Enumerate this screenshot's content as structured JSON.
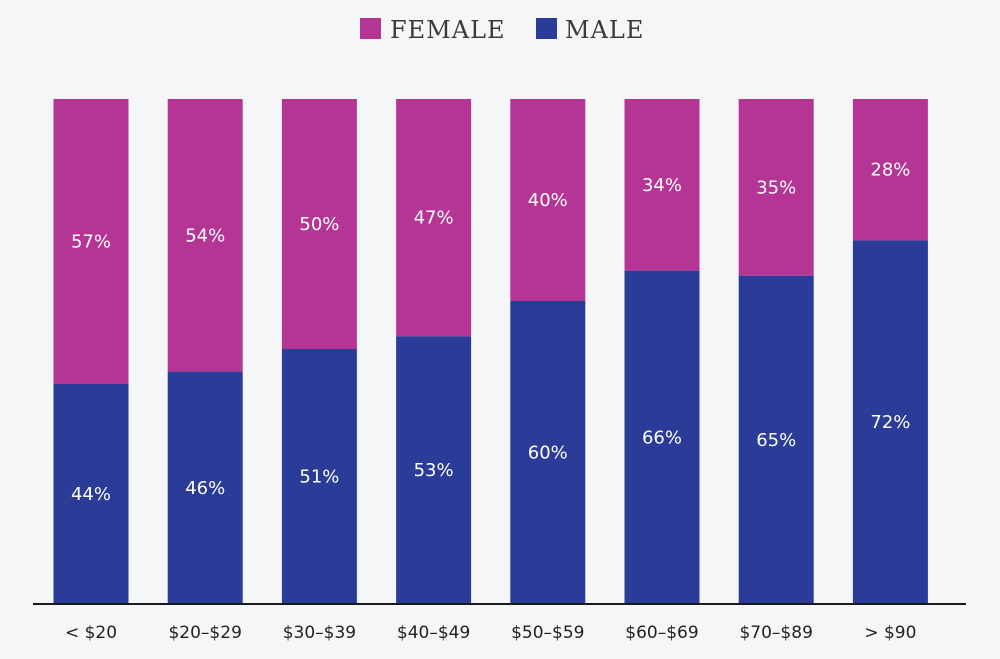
{
  "chart_data": {
    "type": "bar",
    "stacked": true,
    "normalized": true,
    "categories": [
      "< $20",
      "$20–$29",
      "$30–$39",
      "$40–$49",
      "$50–$59",
      "$60–$69",
      "$70–$89",
      "> $90"
    ],
    "series": [
      {
        "name": "FEMALE",
        "color": "#b53594",
        "values": [
          57,
          54,
          50,
          47,
          40,
          34,
          35,
          28
        ],
        "labels": [
          "57%",
          "54%",
          "50%",
          "47%",
          "40%",
          "34%",
          "35%",
          "28%"
        ]
      },
      {
        "name": "MALE",
        "color": "#2a3b98",
        "values": [
          44,
          46,
          51,
          53,
          60,
          66,
          65,
          72
        ],
        "labels": [
          "44%",
          "46%",
          "51%",
          "53%",
          "60%",
          "66%",
          "65%",
          "72%"
        ]
      }
    ],
    "legend": {
      "position": "top-center",
      "entries": [
        "FEMALE",
        "MALE"
      ]
    },
    "title": "",
    "xlabel": "",
    "ylabel": "",
    "ylim": [
      0,
      100
    ],
    "grid": false
  }
}
